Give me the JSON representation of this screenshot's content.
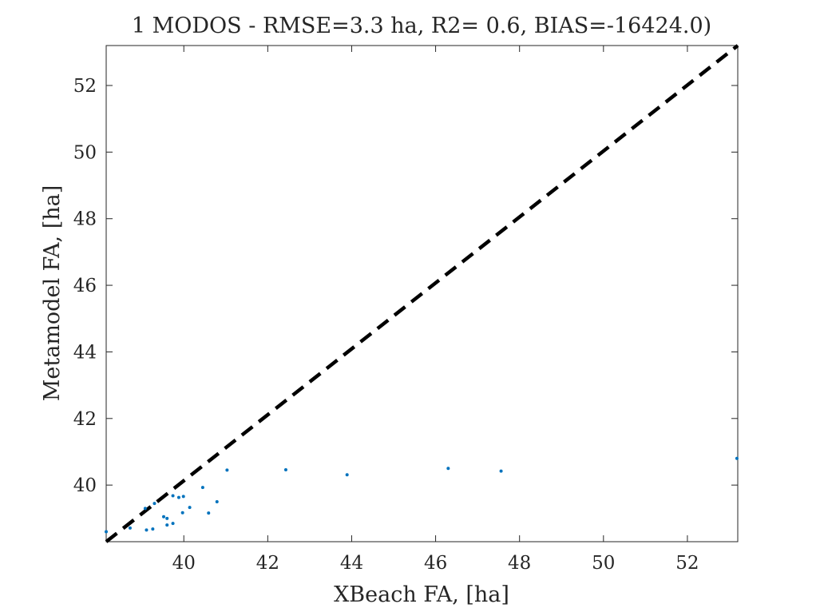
{
  "chart_data": {
    "type": "scatter",
    "title": "1 MODOS - RMSE=3.3 ha, R2= 0.6, BIAS=-16424.0)",
    "xlabel": "XBeach FA, [ha]",
    "ylabel": "Metamodel FA, [ha]",
    "xlim": [
      38.15,
      53.2
    ],
    "ylim": [
      38.3,
      53.2
    ],
    "xticks": [
      40,
      42,
      44,
      46,
      48,
      50,
      52
    ],
    "yticks": [
      40,
      42,
      44,
      46,
      48,
      50,
      52
    ],
    "grid": false,
    "legend": "none",
    "reference_line": {
      "style": "dashed",
      "color": "#000000",
      "from": [
        38.15,
        38.3
      ],
      "to": [
        53.2,
        53.2
      ]
    },
    "series": [
      {
        "color": "#0072BD",
        "points": [
          [
            38.15,
            38.6
          ],
          [
            38.72,
            38.71
          ],
          [
            39.08,
            39.3
          ],
          [
            39.11,
            38.65
          ],
          [
            39.26,
            38.68
          ],
          [
            39.3,
            39.45
          ],
          [
            39.52,
            39.05
          ],
          [
            39.6,
            39.0
          ],
          [
            39.6,
            38.8
          ],
          [
            39.74,
            38.85
          ],
          [
            39.74,
            39.68
          ],
          [
            39.88,
            39.63
          ],
          [
            39.97,
            39.17
          ],
          [
            39.99,
            39.66
          ],
          [
            40.14,
            39.33
          ],
          [
            40.45,
            39.93
          ],
          [
            40.59,
            39.16
          ],
          [
            40.79,
            39.5
          ],
          [
            41.03,
            40.45
          ],
          [
            42.43,
            40.46
          ],
          [
            43.89,
            40.31
          ],
          [
            46.3,
            40.5
          ],
          [
            47.56,
            40.42
          ],
          [
            53.18,
            40.8
          ]
        ]
      }
    ]
  }
}
